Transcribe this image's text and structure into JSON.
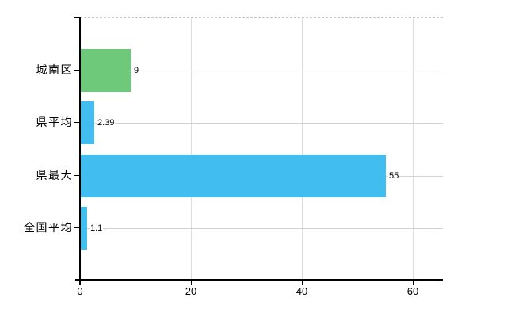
{
  "chart_data": {
    "type": "bar",
    "orientation": "horizontal",
    "title": "",
    "xlabel": "",
    "ylabel": "",
    "categories": [
      "城南区",
      "県平均",
      "県最大",
      "全国平均"
    ],
    "values": [
      9,
      2.39,
      55,
      1.1
    ],
    "value_labels": [
      "9",
      "2.39",
      "55",
      "1.1"
    ],
    "bar_colors": [
      "#6eca7a",
      "#41bdef",
      "#41bdef",
      "#41bdef"
    ],
    "xlim": [
      0,
      65.4
    ],
    "xticks": [
      0,
      20,
      40,
      60
    ],
    "xtick_labels": [
      "0",
      "20",
      "40",
      "60"
    ],
    "grid": true,
    "legend": false,
    "colors": {
      "axis": "#000000",
      "grid_horizontal": "#ccd6cc",
      "grid_vertical": "#dcdcdc",
      "top_border": "#c8c8c8",
      "background": "#ffffff",
      "text": "#000000"
    }
  }
}
